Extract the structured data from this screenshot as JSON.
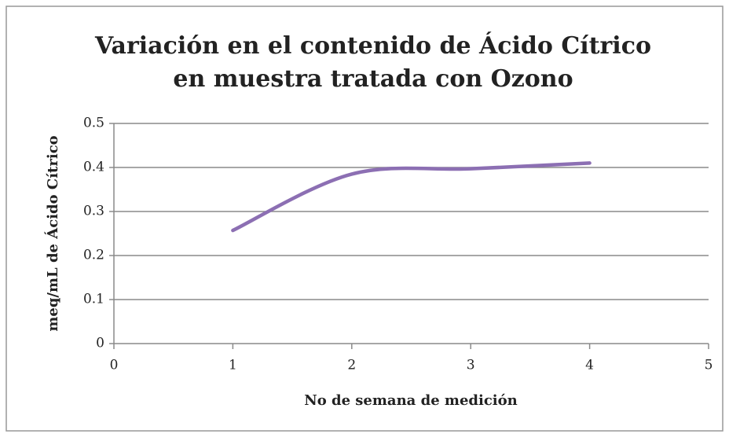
{
  "chart_data": {
    "type": "line",
    "title": [
      "Variación en el contenido de Ácido Cítrico",
      "en muestra tratada con Ozono"
    ],
    "x_label": "No de semana de medición",
    "y_label": "meq/mL de Ácido Cítrico",
    "x": [
      1,
      2,
      3,
      4
    ],
    "series": [
      {
        "name": "Ácido Cítrico",
        "color": "#8c6fb3",
        "values": [
          0.257,
          0.385,
          0.397,
          0.41
        ]
      }
    ],
    "xlim": [
      0,
      5
    ],
    "xticks": [
      0,
      1,
      2,
      3,
      4,
      5
    ],
    "ylim": [
      0,
      0.5
    ],
    "yticks": [
      0,
      0.1,
      0.2,
      0.3,
      0.4,
      0.5
    ],
    "grid": true
  }
}
